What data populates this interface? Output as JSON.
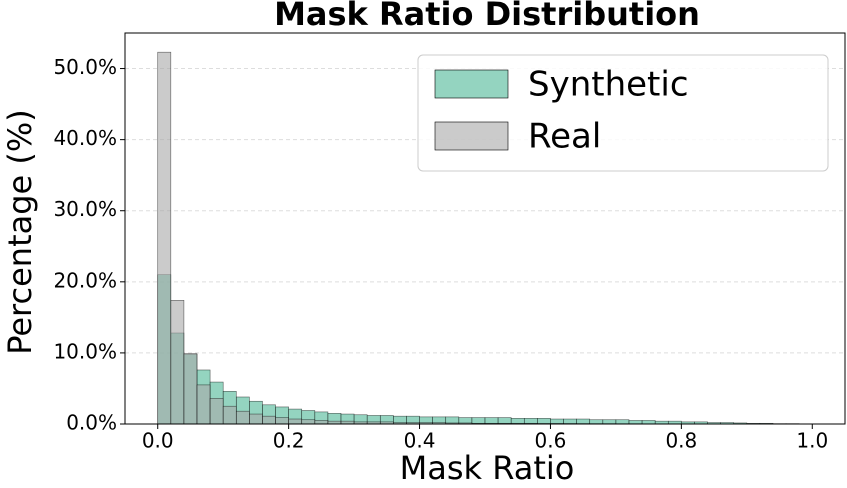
{
  "chart_data": {
    "type": "histogram",
    "title": "Mask Ratio Distribution",
    "x_label": "Mask Ratio",
    "y_label": "Percentage (%)",
    "bins": [
      0,
      0.02,
      0.04,
      0.06,
      0.08,
      0.1,
      0.12,
      0.14,
      0.16,
      0.18,
      0.2,
      0.22,
      0.24,
      0.26,
      0.28,
      0.3,
      0.32,
      0.34,
      0.36,
      0.38,
      0.4,
      0.42,
      0.44,
      0.46,
      0.48,
      0.5,
      0.52,
      0.54,
      0.56,
      0.58,
      0.6,
      0.62,
      0.64,
      0.66,
      0.68,
      0.7,
      0.72,
      0.74,
      0.76,
      0.78,
      0.8,
      0.82,
      0.84,
      0.86,
      0.88,
      0.9,
      0.92,
      0.94,
      0.96,
      0.98,
      1.0
    ],
    "series": [
      {
        "name": "Synthetic",
        "color": "#66c2a5",
        "opacity": 0.7,
        "values": [
          21.0,
          12.8,
          9.8,
          7.6,
          5.9,
          4.6,
          3.8,
          3.2,
          2.7,
          2.4,
          2.1,
          1.9,
          1.7,
          1.5,
          1.4,
          1.3,
          1.2,
          1.2,
          1.1,
          1.1,
          1.0,
          1.0,
          1.0,
          0.9,
          0.9,
          0.9,
          0.9,
          0.8,
          0.8,
          0.8,
          0.7,
          0.7,
          0.7,
          0.6,
          0.6,
          0.6,
          0.5,
          0.5,
          0.4,
          0.4,
          0.3,
          0.3,
          0.2,
          0.2,
          0.15,
          0.1,
          0.1,
          0.05,
          0.05,
          0.02
        ]
      },
      {
        "name": "Real",
        "color": "#a9a9a9",
        "opacity": 0.6,
        "values": [
          52.3,
          17.4,
          9.9,
          5.5,
          3.6,
          2.5,
          1.8,
          1.4,
          1.1,
          0.9,
          0.7,
          0.6,
          0.5,
          0.4,
          0.4,
          0.3,
          0.3,
          0.3,
          0.2,
          0.2,
          0.2,
          0.2,
          0.15,
          0.15,
          0.1,
          0.1,
          0.1,
          0.1,
          0.1,
          0.08,
          0.08,
          0.07,
          0.06,
          0.05,
          0.05,
          0.04,
          0.04,
          0.03,
          0.03,
          0.03,
          0.02,
          0.02,
          0.02,
          0.01,
          0.01,
          0.01,
          0.01,
          0.01,
          0.01,
          0.01
        ]
      }
    ],
    "xlim": [
      -0.05,
      1.05
    ],
    "ylim": [
      0,
      55
    ],
    "xticks": [
      {
        "value": 0,
        "label": "0.0"
      },
      0.2,
      0.4,
      0.6,
      0.8,
      {
        "value": 1,
        "label": "1.0"
      }
    ],
    "yticks": [
      {
        "value": 0,
        "label": "0.0%"
      },
      {
        "value": 10,
        "label": "10.0%"
      },
      {
        "value": 20,
        "label": "20.0%"
      },
      {
        "value": 30,
        "label": "30.0%"
      },
      {
        "value": 40,
        "label": "40.0%"
      },
      {
        "value": 50,
        "label": "50.0%"
      }
    ],
    "grid": true,
    "legend": "upper-right"
  }
}
